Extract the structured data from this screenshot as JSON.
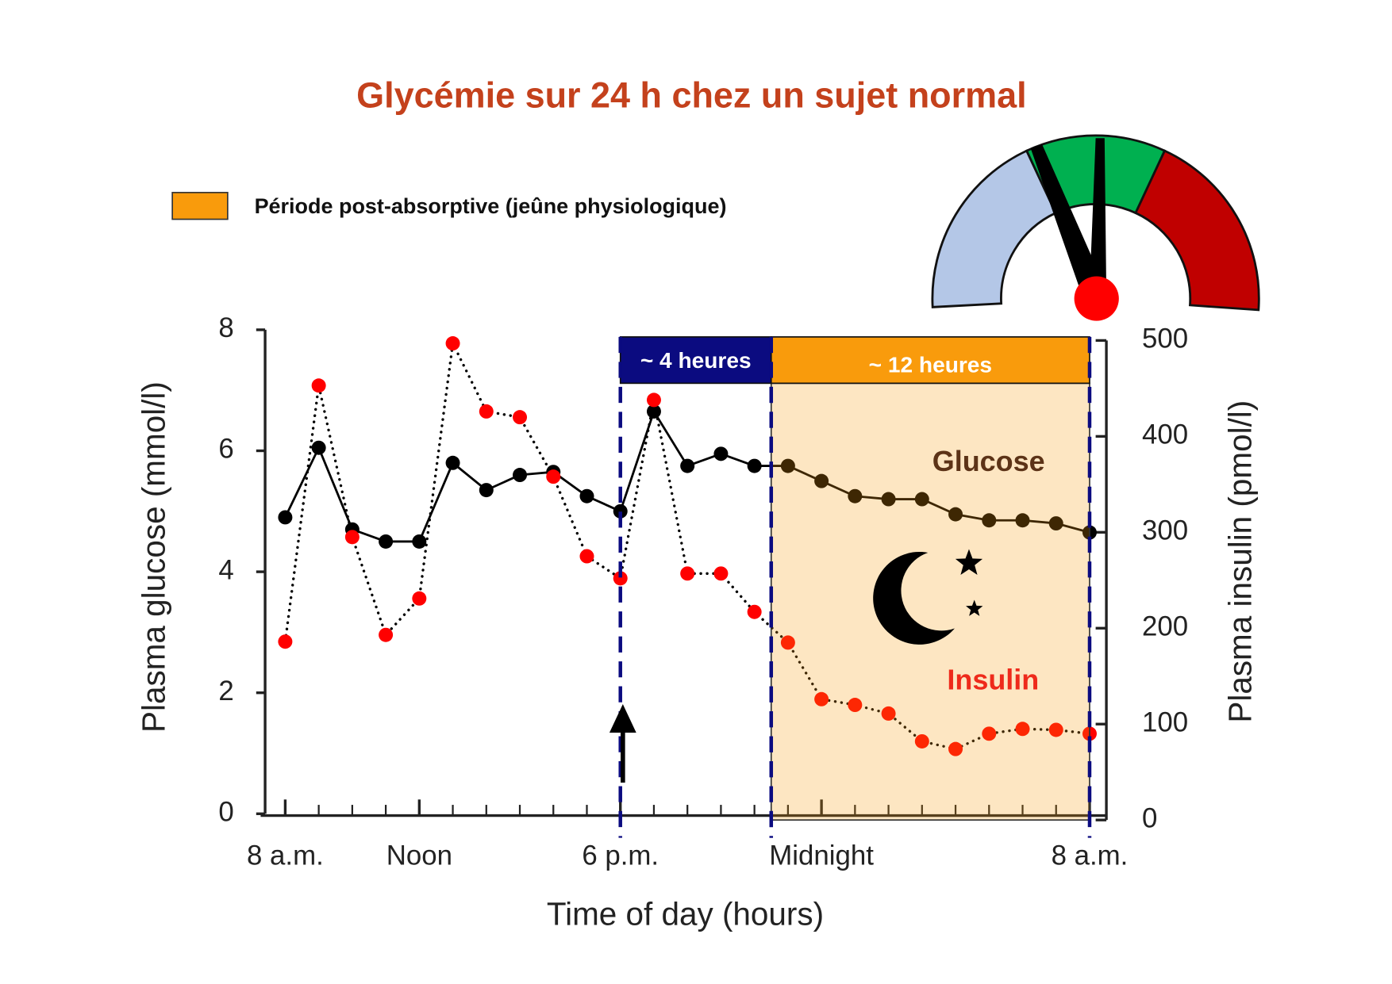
{
  "chart_data": {
    "type": "line",
    "title": "Glycémie sur 24 h chez un sujet normal",
    "legend": {
      "label": "Période post-absorptive (jeûne physiologique)",
      "color": "#f99b0c"
    },
    "x": [
      0,
      1,
      2,
      3,
      4,
      5,
      6,
      7,
      8,
      9,
      10,
      11,
      12,
      13,
      14,
      15,
      16,
      17,
      18,
      19,
      20,
      21,
      22,
      23,
      24
    ],
    "xlim": [
      -0.6,
      24.5
    ],
    "xticks": [
      {
        "value": 0,
        "label": "8 a.m."
      },
      {
        "value": 4,
        "label": "Noon"
      },
      {
        "value": 10,
        "label": "6 p.m."
      },
      {
        "value": 16,
        "label": "Midnight"
      },
      {
        "value": 24,
        "label": "8 a.m."
      }
    ],
    "ylim": [
      0,
      8
    ],
    "yticks": [
      0,
      2,
      4,
      6,
      8
    ],
    "y2lim": [
      0,
      500
    ],
    "y2ticks": [
      0,
      100,
      200,
      300,
      400,
      500
    ],
    "xlabel": "Time of day (hours)",
    "ylabel": "Plasma glucose (mmol/l)",
    "y2label": "Plasma insulin (pmol/l)",
    "series": [
      {
        "name": "Glucose",
        "color": "#000000",
        "line": "solid",
        "values": [
          4.9,
          6.05,
          4.7,
          4.5,
          4.5,
          5.8,
          5.35,
          5.6,
          5.65,
          5.25,
          5.0,
          6.65,
          5.75,
          5.95,
          5.75,
          5.75,
          5.5,
          5.25,
          5.2,
          5.2,
          4.95,
          4.85,
          4.85,
          4.8,
          4.65
        ]
      },
      {
        "name": "Insulin",
        "color": "#ff0000",
        "line": "dotted",
        "axis": "y2",
        "values": [
          186,
          453,
          295,
          193,
          231,
          497,
          426,
          420,
          358,
          275,
          252,
          438,
          257,
          257,
          217,
          185,
          126,
          120,
          111,
          82,
          74,
          90,
          95,
          94,
          90
        ]
      }
    ],
    "periods": [
      {
        "label": "~ 4 heures",
        "start": 10,
        "end": 14.5,
        "color": "#0b0b80"
      },
      {
        "label": "~ 12 heures",
        "start": 14.5,
        "end": 24,
        "color": "#f99b0c"
      }
    ]
  }
}
